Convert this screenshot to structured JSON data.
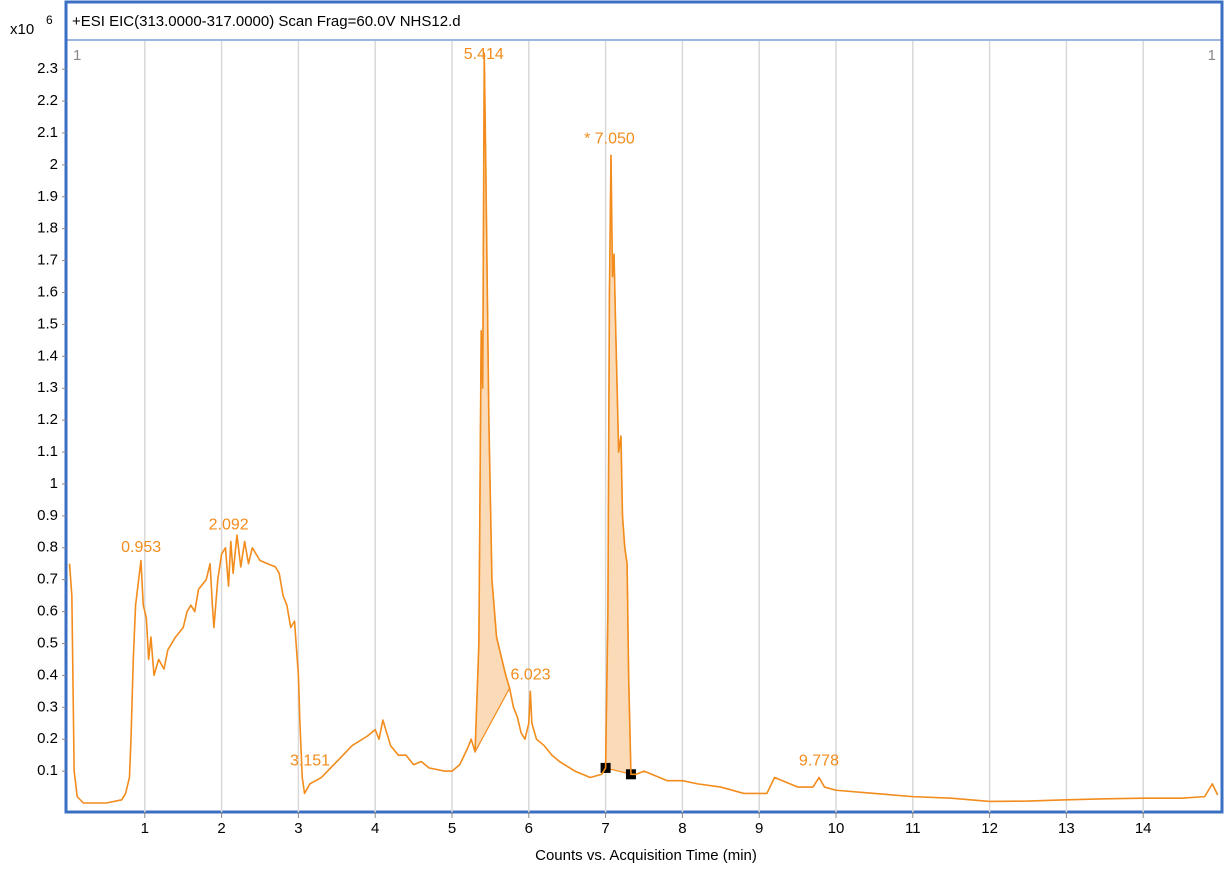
{
  "chart_data": {
    "type": "line",
    "title": "+ESI EIC(313.0000-317.0000) Scan Frag=60.0V NHS12.d",
    "x_label": "Counts vs. Acquisition Time (min)",
    "y_multiplier": {
      "base": "x10",
      "exponent": "6"
    },
    "corner_labels": [
      "1",
      "1"
    ],
    "color": "#f28c1c",
    "grid": "x",
    "xlim": [
      0,
      15
    ],
    "ylim": [
      0,
      2.335
    ],
    "xticks": [
      1,
      2,
      3,
      4,
      5,
      6,
      7,
      8,
      9,
      10,
      11,
      12,
      13,
      14
    ],
    "yticks": [
      0.1,
      0.2,
      0.3,
      0.4,
      0.5,
      0.6,
      0.7,
      0.8,
      0.9,
      1,
      1.1,
      1.2,
      1.3,
      1.4,
      1.5,
      1.6,
      1.7,
      1.8,
      1.9,
      2,
      2.1,
      2.2,
      2.3
    ],
    "x": [
      0.02,
      0.05,
      0.08,
      0.12,
      0.2,
      0.5,
      0.7,
      0.75,
      0.8,
      0.82,
      0.85,
      0.88,
      0.92,
      0.95,
      0.98,
      1.02,
      1.05,
      1.08,
      1.12,
      1.18,
      1.25,
      1.3,
      1.4,
      1.5,
      1.55,
      1.6,
      1.65,
      1.7,
      1.8,
      1.85,
      1.88,
      1.9,
      1.95,
      2.0,
      2.05,
      2.09,
      2.12,
      2.15,
      2.2,
      2.25,
      2.3,
      2.35,
      2.4,
      2.5,
      2.6,
      2.7,
      2.75,
      2.8,
      2.85,
      2.9,
      2.95,
      2.97,
      3.0,
      3.02,
      3.05,
      3.08,
      3.15,
      3.3,
      3.5,
      3.7,
      3.9,
      4.0,
      4.05,
      4.1,
      4.15,
      4.2,
      4.3,
      4.4,
      4.5,
      4.6,
      4.7,
      4.9,
      5.0,
      5.1,
      5.2,
      5.25,
      5.3,
      5.35,
      5.38,
      5.4,
      5.42,
      5.44,
      5.48,
      5.52,
      5.58,
      5.65,
      5.7,
      5.75,
      5.8,
      5.85,
      5.9,
      5.95,
      6.0,
      6.02,
      6.04,
      6.1,
      6.2,
      6.3,
      6.4,
      6.6,
      6.8,
      6.95,
      7.0,
      7.03,
      7.05,
      7.07,
      7.09,
      7.11,
      7.13,
      7.17,
      7.2,
      7.22,
      7.25,
      7.28,
      7.3,
      7.33,
      7.4,
      7.5,
      7.6,
      7.8,
      8.0,
      8.2,
      8.5,
      8.8,
      9.1,
      9.2,
      9.3,
      9.5,
      9.7,
      9.78,
      9.85,
      10.0,
      10.5,
      11.0,
      11.5,
      12.0,
      12.5,
      13.0,
      13.5,
      14.0,
      14.5,
      14.8,
      14.9,
      14.97
    ],
    "values": [
      0.75,
      0.65,
      0.1,
      0.02,
      0.0,
      0.0,
      0.01,
      0.03,
      0.08,
      0.2,
      0.45,
      0.62,
      0.7,
      0.76,
      0.62,
      0.58,
      0.45,
      0.52,
      0.4,
      0.45,
      0.42,
      0.48,
      0.52,
      0.55,
      0.6,
      0.62,
      0.6,
      0.67,
      0.7,
      0.75,
      0.62,
      0.55,
      0.7,
      0.78,
      0.8,
      0.68,
      0.82,
      0.72,
      0.84,
      0.74,
      0.82,
      0.75,
      0.8,
      0.76,
      0.75,
      0.74,
      0.72,
      0.65,
      0.62,
      0.55,
      0.57,
      0.5,
      0.4,
      0.25,
      0.08,
      0.03,
      0.06,
      0.08,
      0.13,
      0.18,
      0.21,
      0.23,
      0.2,
      0.26,
      0.22,
      0.18,
      0.15,
      0.15,
      0.12,
      0.13,
      0.11,
      0.1,
      0.1,
      0.12,
      0.17,
      0.2,
      0.16,
      0.5,
      1.48,
      1.3,
      2.35,
      2.0,
      1.2,
      0.7,
      0.52,
      0.45,
      0.4,
      0.36,
      0.3,
      0.27,
      0.22,
      0.2,
      0.25,
      0.35,
      0.25,
      0.2,
      0.18,
      0.15,
      0.13,
      0.1,
      0.08,
      0.09,
      0.11,
      0.6,
      1.6,
      2.03,
      1.65,
      1.72,
      1.5,
      1.1,
      1.15,
      0.9,
      0.8,
      0.75,
      0.4,
      0.09,
      0.09,
      0.1,
      0.09,
      0.07,
      0.07,
      0.06,
      0.05,
      0.03,
      0.03,
      0.08,
      0.07,
      0.05,
      0.05,
      0.08,
      0.05,
      0.04,
      0.03,
      0.02,
      0.015,
      0.005,
      0.006,
      0.01,
      0.013,
      0.015,
      0.015,
      0.02,
      0.06,
      0.025
    ],
    "peaks": {
      "x": [
        0.953,
        2.092,
        3.151,
        5.414,
        6.023,
        7.05,
        9.778
      ],
      "y": [
        0.8,
        0.87,
        0.13,
        2.345,
        0.4,
        2.08,
        0.13
      ],
      "labels": [
        "0.953",
        "2.092",
        "3.151",
        "5.414",
        "6.023",
        "* 7.050",
        "9.778"
      ]
    },
    "integrations": [
      {
        "start": 5.3,
        "end": 5.75,
        "markers": false
      },
      {
        "start": 7.0,
        "end": 7.33,
        "markers": true
      }
    ]
  }
}
